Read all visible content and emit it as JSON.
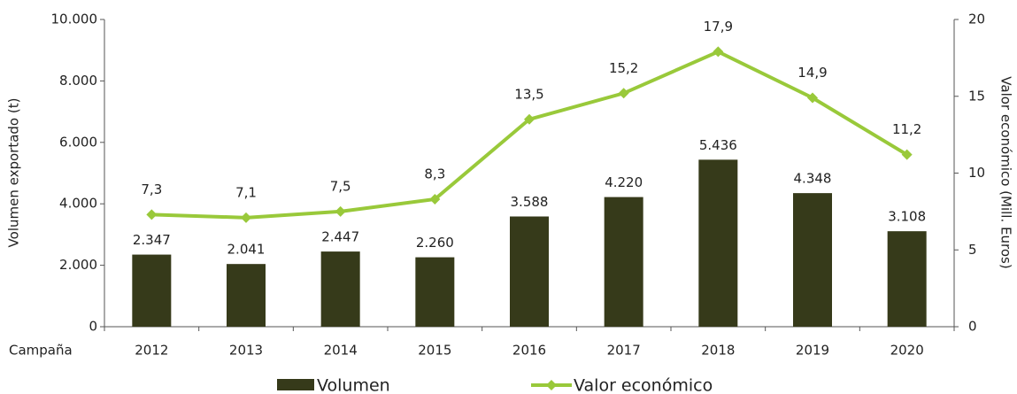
{
  "chart_data": {
    "type": "bar",
    "x_label": "Campaña",
    "y_label": "Volumen exportado (t)",
    "y2_label": "Valor económico (Mill. Euros)",
    "categories": [
      "2012",
      "2013",
      "2014",
      "2015",
      "2016",
      "2017",
      "2018",
      "2019",
      "2020"
    ],
    "series": [
      {
        "name": "Volumen",
        "type": "bar",
        "color": "#363a1a",
        "values": [
          2347,
          2041,
          2447,
          2260,
          3588,
          4220,
          5436,
          4348,
          3108
        ],
        "value_labels": [
          "2.347",
          "2.041",
          "2.447",
          "2.260",
          "3.588",
          "4.220",
          "5.436",
          "4.348",
          "3.108"
        ]
      },
      {
        "name": "Valor económico",
        "type": "line",
        "axis": "y2",
        "color": "#99c93a",
        "values": [
          7.3,
          7.1,
          7.5,
          8.3,
          13.5,
          15.2,
          17.9,
          14.9,
          11.2
        ],
        "value_labels": [
          "7,3",
          "7,1",
          "7,5",
          "8,3",
          "13,5",
          "15,2",
          "17,9",
          "14,9",
          "11,2"
        ]
      }
    ],
    "ylim": [
      0,
      10000
    ],
    "yticks": [
      0,
      {
        "value": 2000,
        "label": "2.000"
      },
      {
        "value": 4000,
        "label": "4.000"
      },
      {
        "value": 6000,
        "label": "6.000"
      },
      {
        "value": 8000,
        "label": "8.000"
      },
      {
        "value": 10000,
        "label": "10.000"
      }
    ],
    "y2lim": [
      0,
      20
    ],
    "y2ticks": [
      0,
      5,
      10,
      15,
      20
    ],
    "legend": "bottom"
  }
}
